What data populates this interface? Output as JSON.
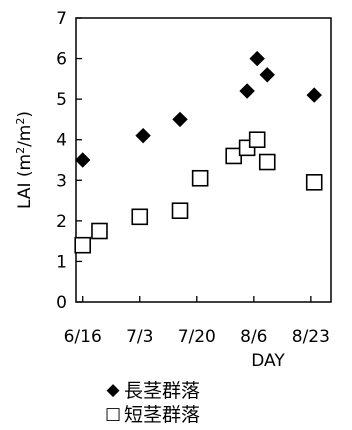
{
  "chart_data": {
    "type": "scatter",
    "xlabel": "DAY",
    "ylabel": "LAI (m²/m²)",
    "ylim": [
      0,
      7
    ],
    "yticks": [
      "0",
      "1",
      "2",
      "3",
      "4",
      "5",
      "6",
      "7"
    ],
    "xlim": [
      "2000-06-14",
      "2000-08-29"
    ],
    "xticks": [
      {
        "label": "6/16",
        "date": "2000-06-16"
      },
      {
        "label": "7/3",
        "date": "2000-07-03"
      },
      {
        "label": "7/20",
        "date": "2000-07-20"
      },
      {
        "label": "8/6",
        "date": "2000-08-06"
      },
      {
        "label": "8/23",
        "date": "2000-08-23"
      }
    ],
    "legend_position": "bottom",
    "series": [
      {
        "name": "長茎群落",
        "marker": "filled-diamond",
        "color": "#000000",
        "points": [
          {
            "x": "2000-06-16",
            "y": 3.5
          },
          {
            "x": "2000-07-04",
            "y": 4.1
          },
          {
            "x": "2000-07-15",
            "y": 4.5
          },
          {
            "x": "2000-08-04",
            "y": 5.2
          },
          {
            "x": "2000-08-07",
            "y": 6.0
          },
          {
            "x": "2000-08-10",
            "y": 5.6
          },
          {
            "x": "2000-08-24",
            "y": 5.1
          }
        ]
      },
      {
        "name": "短茎群落",
        "marker": "open-square",
        "color": "#000000",
        "points": [
          {
            "x": "2000-06-16",
            "y": 1.4
          },
          {
            "x": "2000-06-21",
            "y": 1.75
          },
          {
            "x": "2000-07-03",
            "y": 2.1
          },
          {
            "x": "2000-07-15",
            "y": 2.25
          },
          {
            "x": "2000-07-21",
            "y": 3.05
          },
          {
            "x": "2000-07-31",
            "y": 3.6
          },
          {
            "x": "2000-08-04",
            "y": 3.8
          },
          {
            "x": "2000-08-07",
            "y": 4.0
          },
          {
            "x": "2000-08-10",
            "y": 3.45
          },
          {
            "x": "2000-08-24",
            "y": 2.95
          }
        ]
      }
    ]
  }
}
